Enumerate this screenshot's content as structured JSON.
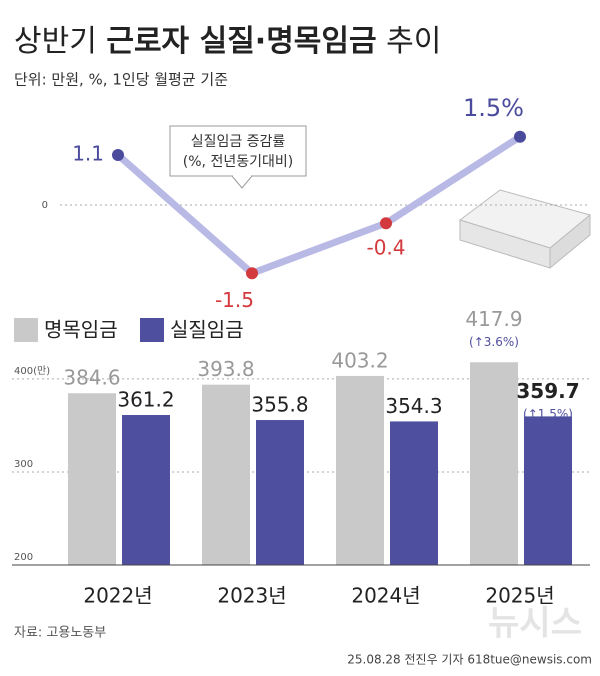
{
  "header": {
    "title_parts": [
      "상반기",
      "근로자 실질·명목임금",
      "추이"
    ],
    "subtitle": "단위: 만원, %, 1인당 월평균 기준"
  },
  "chart_data": [
    {
      "type": "line",
      "categories": [
        "2022년",
        "2023년",
        "2024년",
        "2025년"
      ],
      "values": [
        1.1,
        -1.5,
        -0.4,
        1.5
      ],
      "value_labels": [
        "1.1",
        "-1.5",
        "-0.4",
        "1.5%"
      ],
      "line_color": "#b9b9e6",
      "positive_color": "#4b4b9d",
      "negative_color": "#d23a3e",
      "ylim": [
        -2,
        2
      ],
      "yticks": [
        0
      ],
      "annotations": [
        "실질임금 증감률",
        "(%, 전년동기대비)"
      ]
    },
    {
      "type": "bar",
      "categories": [
        "2022년",
        "2023년",
        "2024년",
        "2025년"
      ],
      "series": [
        {
          "name": "명목임금",
          "color": "#c9c9c9",
          "values": [
            384.6,
            393.8,
            403.2,
            417.9
          ]
        },
        {
          "name": "실질임금",
          "color": "#4f4f9f",
          "values": [
            361.2,
            355.8,
            354.3,
            359.7
          ]
        }
      ],
      "ylim": [
        200,
        430
      ],
      "yticks": [
        {
          "value": 400,
          "label": "400(만)"
        },
        300,
        200
      ],
      "grid": true,
      "annotations": [
        "(↑3.6%)",
        "(↑1.5%)"
      ]
    }
  ],
  "footer": {
    "source": "자료: 고용노동부",
    "credit": "25.08.28 전진우 기자 618tue@newsis.com",
    "watermark": "뉴시스"
  }
}
